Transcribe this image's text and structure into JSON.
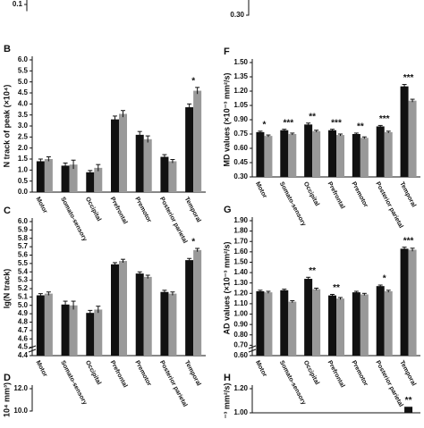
{
  "chart_data": [
    {
      "type": "bar",
      "yticks": [
        0.1
      ]
    },
    {
      "type": "bar",
      "yticks": [
        {
          "value": 0.3,
          "label": "0.30"
        }
      ]
    },
    {
      "type": "bar",
      "label": "B",
      "ylabel": "N track of peak (×10⁴)",
      "categories": [
        "Motor",
        "Somato-sensory",
        "Occipital",
        "Prefrontal",
        "Premotor",
        "Posterior parietal",
        "Temporal"
      ],
      "series": [
        {
          "color": "#111111",
          "values": [
            1.4,
            1.2,
            0.9,
            3.3,
            2.6,
            1.6,
            3.85
          ],
          "errors": [
            0.1,
            0.12,
            0.08,
            0.15,
            0.15,
            0.1,
            0.15
          ]
        },
        {
          "color": "#999999",
          "values": [
            1.5,
            1.25,
            1.1,
            3.55,
            2.4,
            1.4,
            4.6
          ],
          "errors": [
            0.1,
            0.2,
            0.15,
            0.15,
            0.15,
            0.08,
            0.15
          ]
        }
      ],
      "stars": [
        null,
        null,
        null,
        null,
        null,
        null,
        "*"
      ],
      "ylim": [
        0,
        6
      ],
      "yticks": [
        {
          "value": 0,
          "label": "0.0"
        },
        0.5,
        {
          "value": 1,
          "label": "1.0"
        },
        1.5,
        {
          "value": 2,
          "label": "2.0"
        },
        2.5,
        {
          "value": 3,
          "label": "3.0"
        },
        3.5,
        {
          "value": 4,
          "label": "4.0"
        },
        4.5,
        {
          "value": 5,
          "label": "5.0"
        },
        5.5,
        {
          "value": 6,
          "label": "6.0"
        }
      ]
    },
    {
      "type": "bar",
      "label": "F",
      "ylabel": "MD values (×10⁻³ mm²/s)",
      "categories": [
        "Motor",
        "Somato-sensory",
        "Occipital",
        "Prefrontal",
        "Premotor",
        "Posterior parietal",
        "Temporal"
      ],
      "series": [
        {
          "color": "#111111",
          "values": [
            0.77,
            0.79,
            0.85,
            0.79,
            0.75,
            0.83,
            1.25
          ],
          "errors": [
            0.01,
            0.01,
            0.015,
            0.01,
            0.01,
            0.01,
            0.02
          ]
        },
        {
          "color": "#999999",
          "values": [
            0.73,
            0.75,
            0.78,
            0.74,
            0.71,
            0.77,
            1.1
          ],
          "errors": [
            0.01,
            0.01,
            0.01,
            0.01,
            0.01,
            0.01,
            0.015
          ]
        }
      ],
      "stars": [
        "*",
        "***",
        "**",
        "***",
        "**",
        "***",
        "***"
      ],
      "ylim": [
        0.3,
        1.5
      ],
      "yticks": [
        {
          "value": 0.3,
          "label": "0.30"
        },
        0.45,
        {
          "value": 0.6,
          "label": "0.60"
        },
        0.75,
        {
          "value": 0.9,
          "label": "0.90"
        },
        1.05,
        {
          "value": 1.2,
          "label": "1.20"
        },
        1.35,
        {
          "value": 1.5,
          "label": "1.50"
        }
      ]
    },
    {
      "type": "bar",
      "label": "C",
      "ylabel": "lg(N track)",
      "categories": [
        "Motor",
        "Somato-sensory",
        "Occipital",
        "Prefrontal",
        "Premotor",
        "Posterior parietal",
        "Temporal"
      ],
      "series": [
        {
          "color": "#111111",
          "values": [
            5.12,
            5.01,
            4.91,
            5.49,
            5.38,
            5.16,
            5.54
          ],
          "errors": [
            0.02,
            0.04,
            0.03,
            0.02,
            0.02,
            0.02,
            0.02
          ]
        },
        {
          "color": "#999999",
          "values": [
            5.14,
            5.0,
            4.95,
            5.53,
            5.34,
            5.14,
            5.66
          ],
          "errors": [
            0.02,
            0.05,
            0.04,
            0.02,
            0.02,
            0.02,
            0.02
          ]
        }
      ],
      "stars": [
        null,
        null,
        null,
        null,
        null,
        null,
        "*"
      ],
      "ylim": [
        4.4,
        6.0
      ],
      "yticks": [
        4.4,
        4.5,
        4.6,
        4.7,
        4.8,
        4.9,
        {
          "value": 5,
          "label": "5.0"
        },
        5.1,
        5.2,
        5.3,
        5.4,
        5.5,
        5.6,
        5.7,
        5.8,
        5.9,
        {
          "value": 6,
          "label": "6.0"
        }
      ]
    },
    {
      "type": "bar",
      "label": "G",
      "ylabel": "AD values (×10⁻³ mm²/s)",
      "categories": [
        "Motor",
        "Somato-sensory",
        "Occipital",
        "Prefrontal",
        "Premotor",
        "Posterior parietal",
        "Temporal"
      ],
      "series": [
        {
          "color": "#111111",
          "values": [
            1.22,
            1.23,
            1.34,
            1.18,
            1.21,
            1.27,
            1.63
          ],
          "errors": [
            0.01,
            0.01,
            0.015,
            0.01,
            0.01,
            0.01,
            0.015
          ]
        },
        {
          "color": "#999999",
          "values": [
            1.21,
            1.12,
            1.24,
            1.15,
            1.19,
            1.22,
            1.62
          ],
          "errors": [
            0.01,
            0.01,
            0.01,
            0.01,
            0.01,
            0.01,
            0.015
          ]
        }
      ],
      "stars": [
        null,
        null,
        "**",
        "**",
        null,
        "*",
        "***"
      ],
      "ylim": [
        0.6,
        1.9
      ],
      "yticks": [
        {
          "value": 0.6,
          "label": "0.60"
        },
        {
          "value": 0.7,
          "label": "0.70"
        },
        {
          "value": 0.8,
          "label": "0.80"
        },
        {
          "value": 0.9,
          "label": "0.90"
        },
        {
          "value": 1.0,
          "label": "1.00"
        },
        {
          "value": 1.1,
          "label": "1.10"
        },
        {
          "value": 1.2,
          "label": "1.20"
        },
        {
          "value": 1.3,
          "label": "1.30"
        },
        {
          "value": 1.4,
          "label": "1.40"
        },
        {
          "value": 1.5,
          "label": "1.50"
        },
        {
          "value": 1.6,
          "label": "1.60"
        },
        {
          "value": 1.7,
          "label": "1.70"
        },
        {
          "value": 1.8,
          "label": "1.80"
        },
        {
          "value": 1.9,
          "label": "1.90"
        }
      ]
    },
    {
      "type": "bar",
      "label": "D",
      "ylabel": "10⁴ mm³)",
      "yticks": [
        {
          "value": 10,
          "label": "10.0"
        },
        {
          "value": 12,
          "label": "12.0"
        }
      ]
    },
    {
      "type": "bar",
      "label": "H",
      "ylabel": "⁻³ mm²/s)",
      "categories": [
        null,
        null,
        null,
        null,
        null,
        null,
        null
      ],
      "series": [
        {
          "color": "#111111",
          "values": [
            null,
            null,
            null,
            null,
            null,
            null,
            1.05
          ]
        }
      ],
      "stars": [
        null,
        null,
        null,
        null,
        null,
        null,
        "**"
      ],
      "yticks": [
        {
          "value": 1.0,
          "label": "1.00"
        },
        {
          "value": 1.2,
          "label": "1.20"
        }
      ]
    }
  ]
}
